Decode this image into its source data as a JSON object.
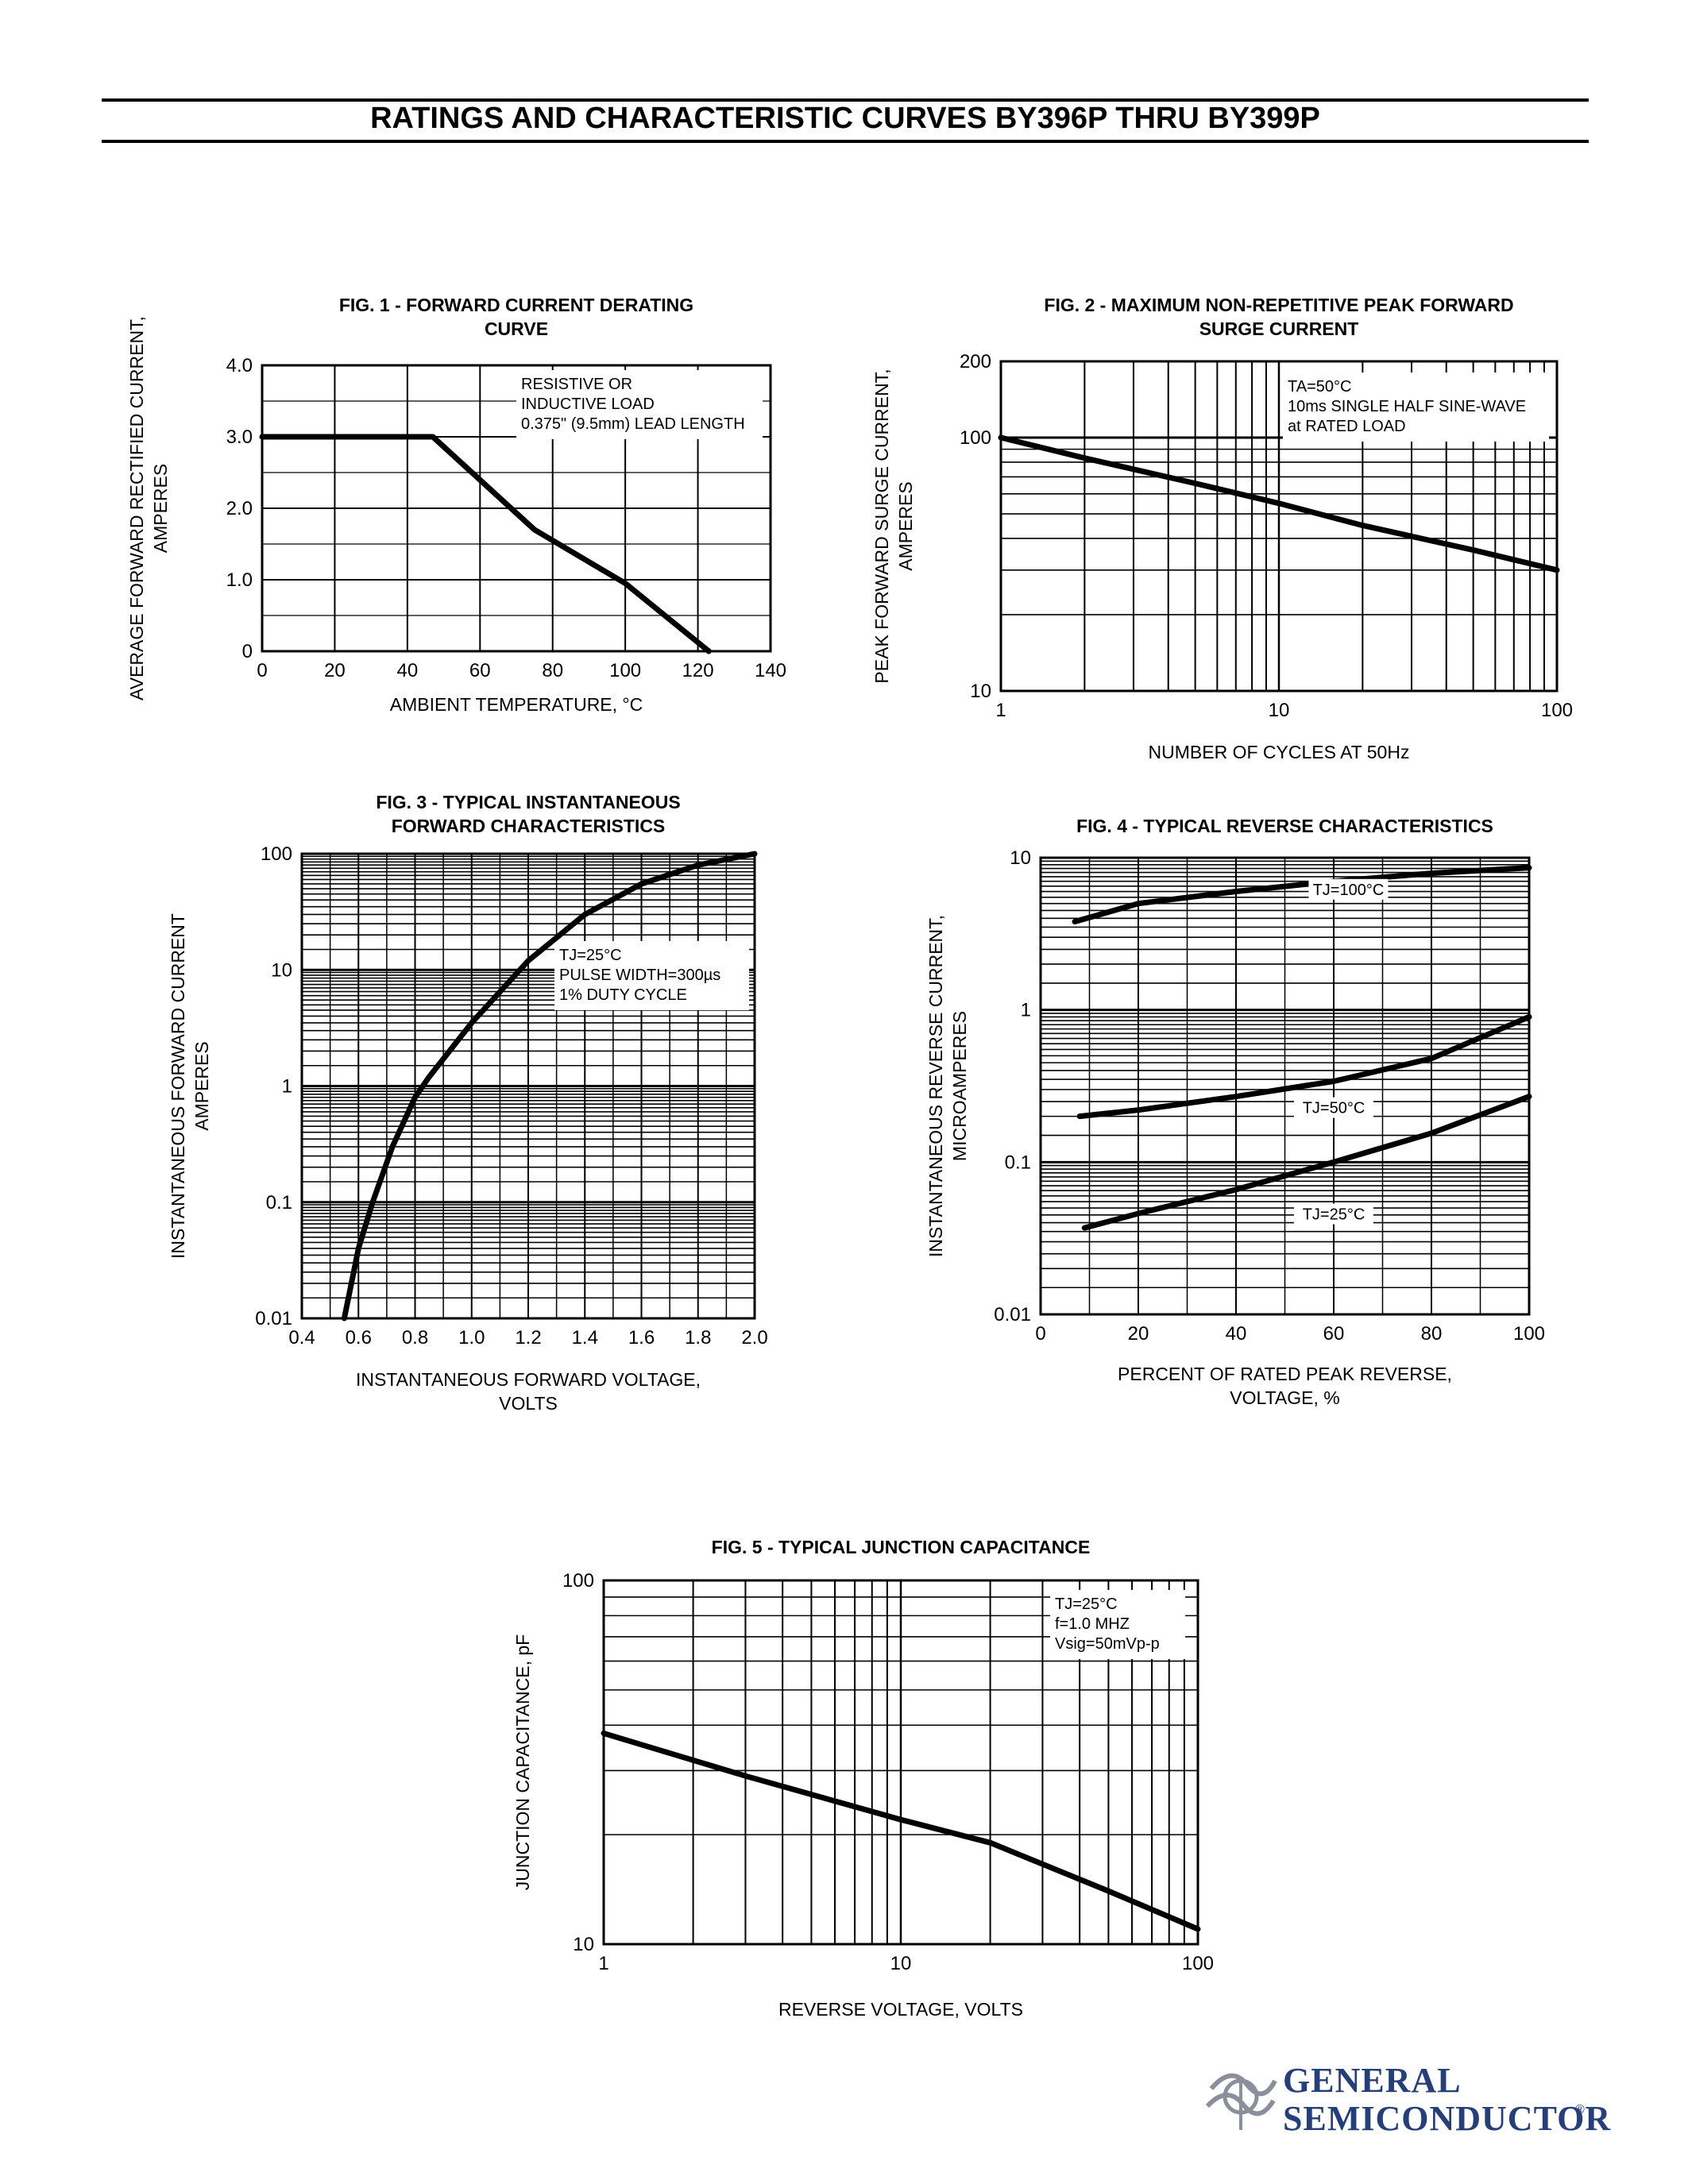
{
  "page": {
    "title": "RATINGS AND CHARACTERISTIC CURVES BY396P THRU BY399P",
    "brand_line1": "GENERAL",
    "brand_line2": "SEMICONDUCTOR",
    "brand_mark": "®",
    "brand_color": "#253f7a"
  },
  "chart_data": [
    {
      "id": "fig1",
      "type": "line",
      "title_lines": [
        "FIG. 1 - FORWARD CURRENT DERATING",
        "CURVE"
      ],
      "xlabel_lines": [
        "AMBIENT TEMPERATURE, °C"
      ],
      "ylabel_lines": [
        "AVERAGE FORWARD RECTIFIED CURRENT,",
        "AMPERES"
      ],
      "xscale": "linear",
      "yscale": "linear",
      "xlim": [
        0,
        140
      ],
      "ylim": [
        0,
        4
      ],
      "xticks": [
        0,
        20,
        40,
        60,
        80,
        100,
        120,
        140
      ],
      "xtick_labels": [
        "0",
        "20",
        "40",
        "60",
        "80",
        "100",
        "120",
        "140"
      ],
      "yticks": [
        0,
        1,
        2,
        3,
        4
      ],
      "ytick_labels": [
        "0",
        "1.0",
        "2.0",
        "3.0",
        "4.0"
      ],
      "grid": true,
      "annotation": [
        "RESISTIVE OR",
        "INDUCTIVE LOAD",
        "0.375\" (9.5mm) LEAD LENGTH"
      ],
      "series": [
        {
          "x": [
            0,
            47,
            75,
            100,
            123
          ],
          "y": [
            3.0,
            3.0,
            1.7,
            0.95,
            0.0
          ]
        }
      ]
    },
    {
      "id": "fig2",
      "type": "line",
      "title_lines": [
        "FIG. 2 - MAXIMUM NON-REPETITIVE PEAK FORWARD",
        "SURGE CURRENT"
      ],
      "xlabel_lines": [
        "NUMBER OF CYCLES AT 50Hz"
      ],
      "ylabel_lines": [
        "PEAK FORWARD SURGE  CURRENT,",
        "AMPERES"
      ],
      "xscale": "log",
      "yscale": "log",
      "xlim": [
        1,
        100
      ],
      "ylim": [
        10,
        200
      ],
      "xticks": [
        1,
        10,
        100
      ],
      "xtick_labels": [
        "1",
        "10",
        "100"
      ],
      "yticks": [
        10,
        100,
        200
      ],
      "ytick_labels": [
        "10",
        "100",
        "200"
      ],
      "grid": true,
      "annotation": [
        "TA=50°C",
        "10ms SINGLE HALF SINE-WAVE",
        "at RATED LOAD"
      ],
      "series": [
        {
          "x": [
            1,
            2,
            5,
            10,
            20,
            50,
            100
          ],
          "y": [
            100,
            83,
            66,
            55,
            45,
            36,
            30
          ]
        }
      ]
    },
    {
      "id": "fig3",
      "type": "line",
      "title_lines": [
        "FIG. 3 - TYPICAL INSTANTANEOUS",
        "FORWARD CHARACTERISTICS"
      ],
      "xlabel_lines": [
        "INSTANTANEOUS FORWARD VOLTAGE,",
        "VOLTS"
      ],
      "ylabel_lines": [
        "INSTANTANEOUS FORWARD  CURRENT",
        "AMPERES"
      ],
      "xscale": "linear",
      "yscale": "log",
      "xlim": [
        0.4,
        2.0
      ],
      "ylim": [
        0.01,
        100
      ],
      "xticks": [
        0.4,
        0.6,
        0.8,
        1.0,
        1.2,
        1.4,
        1.6,
        1.8,
        2.0
      ],
      "xtick_labels": [
        "0.4",
        "0.6",
        "0.8",
        "1.0",
        "1.2",
        "1.4",
        "1.6",
        "1.8",
        "2.0"
      ],
      "yticks": [
        0.01,
        0.1,
        1,
        10,
        100
      ],
      "ytick_labels": [
        "0.01",
        "0.1",
        "1",
        "10",
        "100"
      ],
      "grid": true,
      "annotation": [
        "TJ=25°C",
        "PULSE WIDTH=300µs",
        "1% DUTY CYCLE"
      ],
      "series": [
        {
          "x": [
            0.55,
            0.6,
            0.65,
            0.72,
            0.8,
            0.85,
            1.0,
            1.2,
            1.4,
            1.6,
            1.8,
            2.0
          ],
          "y": [
            0.01,
            0.04,
            0.1,
            0.3,
            0.8,
            1.2,
            3.5,
            12,
            30,
            55,
            80,
            100
          ]
        }
      ]
    },
    {
      "id": "fig4",
      "type": "line",
      "title_lines": [
        "FIG. 4 - TYPICAL REVERSE CHARACTERISTICS"
      ],
      "xlabel_lines": [
        "PERCENT OF RATED PEAK REVERSE,",
        "VOLTAGE, %"
      ],
      "ylabel_lines": [
        "INSTANTANEOUS REVERSE CURRENT,",
        "MICROAMPERES"
      ],
      "xscale": "linear",
      "yscale": "log",
      "xlim": [
        0,
        100
      ],
      "ylim": [
        0.01,
        10
      ],
      "xticks": [
        0,
        20,
        40,
        60,
        80,
        100
      ],
      "xtick_labels": [
        "0",
        "20",
        "40",
        "60",
        "80",
        "100"
      ],
      "yticks": [
        0.01,
        0.1,
        1,
        10
      ],
      "ytick_labels": [
        "0.01",
        "0.1",
        "1",
        "10"
      ],
      "grid": true,
      "series": [
        {
          "name": "TJ=100°C",
          "x": [
            7,
            20,
            40,
            60,
            80,
            100
          ],
          "y": [
            3.8,
            5.0,
            6.0,
            7.0,
            7.9,
            8.6
          ]
        },
        {
          "name": "TJ=50°C",
          "x": [
            8,
            20,
            40,
            60,
            80,
            100
          ],
          "y": [
            0.2,
            0.22,
            0.27,
            0.34,
            0.48,
            0.9
          ]
        },
        {
          "name": "TJ=25°C",
          "x": [
            9,
            20,
            40,
            60,
            80,
            100
          ],
          "y": [
            0.037,
            0.046,
            0.066,
            0.1,
            0.155,
            0.27
          ]
        }
      ],
      "series_label_positions": [
        {
          "x": 63,
          "y": 5.7
        },
        {
          "x": 60,
          "y": 0.21
        },
        {
          "x": 60,
          "y": 0.042
        }
      ]
    },
    {
      "id": "fig5",
      "type": "line",
      "title_lines": [
        "FIG. 5 - TYPICAL JUNCTION CAPACITANCE"
      ],
      "xlabel_lines": [
        "REVERSE VOLTAGE, VOLTS"
      ],
      "ylabel_lines": [
        "JUNCTION CAPACITANCE, pF"
      ],
      "xscale": "log",
      "yscale": "log",
      "xlim": [
        1,
        100
      ],
      "ylim": [
        10,
        100
      ],
      "xticks": [
        1,
        10,
        100
      ],
      "xtick_labels": [
        "1",
        "10",
        "100"
      ],
      "yticks": [
        10,
        100
      ],
      "ytick_labels": [
        "10",
        "100"
      ],
      "grid": true,
      "annotation": [
        "TJ=25°C",
        "f=1.0 MHZ",
        "Vsig=50mVp-p"
      ],
      "series": [
        {
          "x": [
            1,
            3,
            10,
            20,
            50,
            100
          ],
          "y": [
            38,
            29,
            22,
            19,
            14,
            11
          ]
        }
      ]
    }
  ]
}
